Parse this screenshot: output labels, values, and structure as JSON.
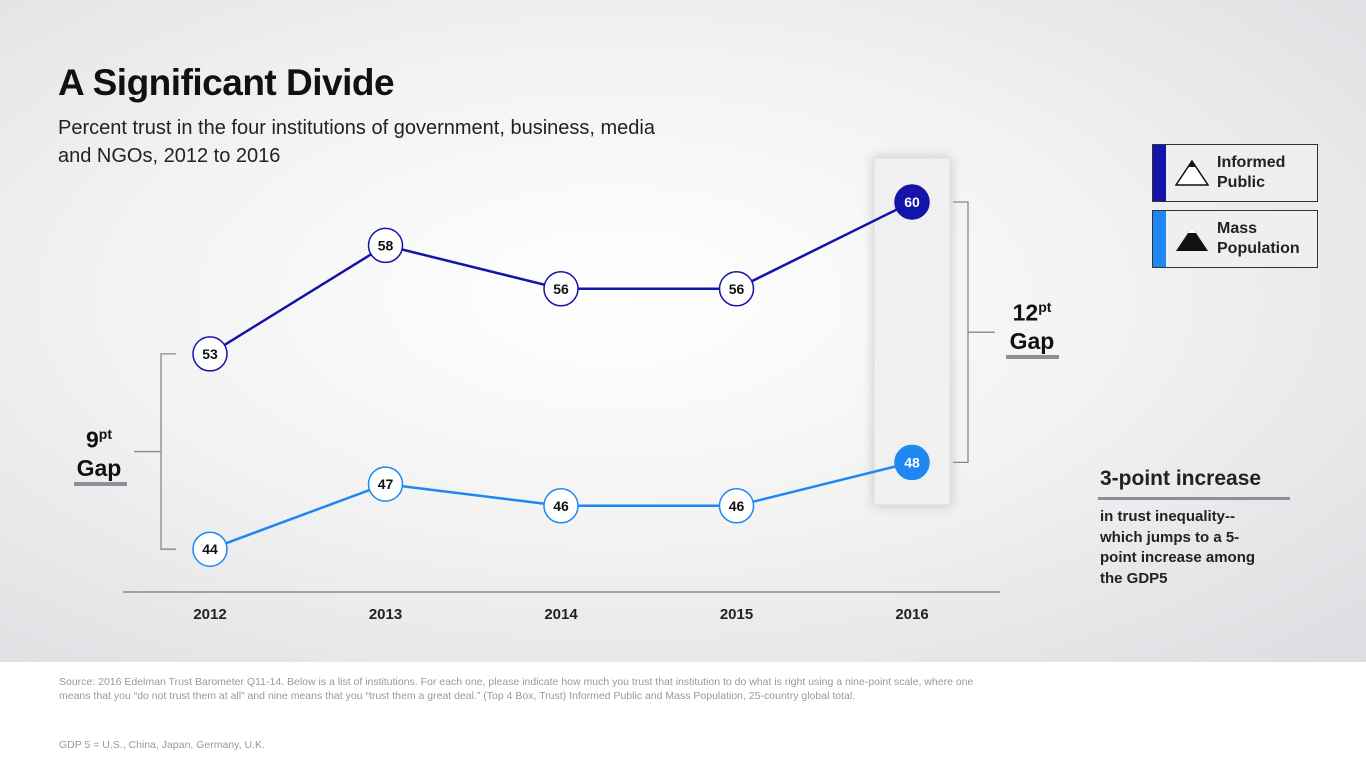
{
  "chart_data": {
    "type": "line",
    "title": "A Significant Divide",
    "subtitle": "Percent trust in the four institutions of government, business, media and NGOs, 2012 to 2016",
    "categories": [
      "2012",
      "2013",
      "2014",
      "2015",
      "2016"
    ],
    "series": [
      {
        "name": "Informed Public",
        "values": [
          53,
          58,
          56,
          56,
          60
        ],
        "color": "#1414a8"
      },
      {
        "name": "Mass Population",
        "values": [
          44,
          47,
          46,
          46,
          48
        ],
        "color": "#1e88f0"
      }
    ],
    "highlight_category": "2016",
    "grid": false,
    "legend_placement": "right",
    "annotations": {
      "gap_2012": {
        "value": "9",
        "unit": "pt",
        "label": "Gap"
      },
      "gap_2016": {
        "value": "12",
        "unit": "pt",
        "label": "Gap"
      },
      "note_head": "3-point increase",
      "note_body": "in trust inequality--which jumps to a 5-point increase among the GDP5"
    }
  },
  "legend": [
    {
      "label": "Informed Public",
      "color": "#1414a8",
      "icon": "mountain-outline-icon"
    },
    {
      "label": "Mass Population",
      "color": "#1e88f0",
      "icon": "mountain-filled-icon"
    }
  ],
  "footer": {
    "source": "Source: 2016 Edelman Trust Barometer Q11-14. Below is a list of institutions. For each one, please indicate how much you trust that institution to do what is right using a nine-point scale, where one means that you “do not trust them at all” and nine means that you “trust them a great deal.” (Top 4 Box, Trust) Informed Public and Mass Population, 25-country global total.",
    "gdp5": "GDP 5 = U.S., China, Japan, Germany, U.K."
  }
}
